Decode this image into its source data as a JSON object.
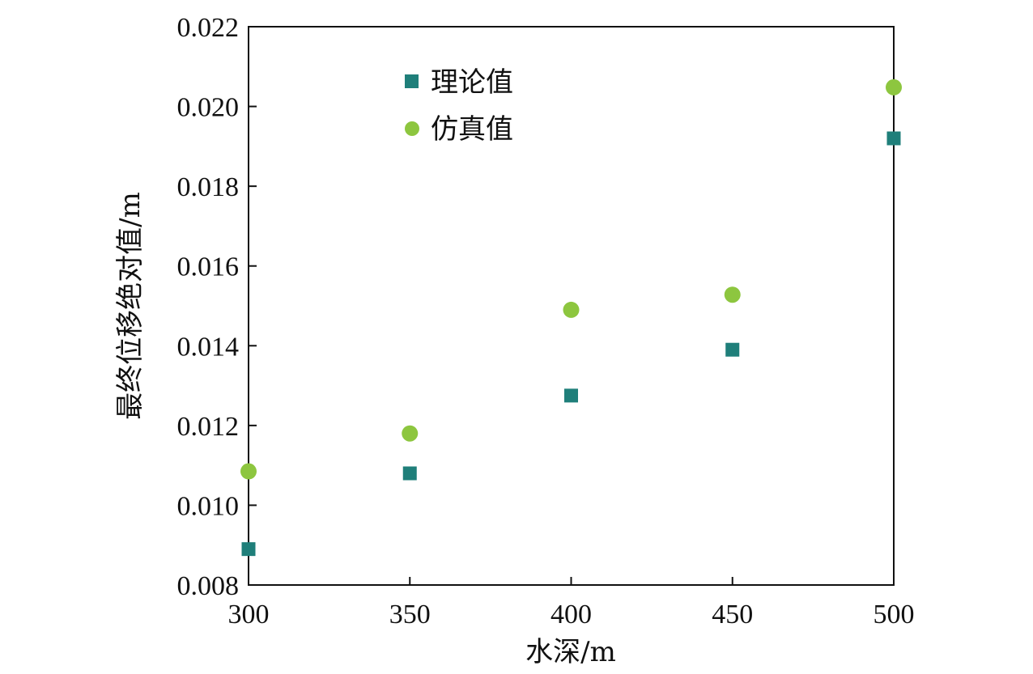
{
  "chart_data": {
    "type": "scatter",
    "xlabel": "水深/m",
    "ylabel": "最终位移绝对值/m",
    "xlim": [
      300,
      500
    ],
    "ylim": [
      0.008,
      0.022
    ],
    "xticks": [
      "300",
      "350",
      "400",
      "450",
      "500"
    ],
    "yticks": [
      "0.008",
      "0.010",
      "0.012",
      "0.014",
      "0.016",
      "0.018",
      "0.020",
      "0.022"
    ],
    "grid": false,
    "legend_position": "top-left",
    "x": [
      300,
      350,
      400,
      450,
      500
    ],
    "series": [
      {
        "name": "理论值",
        "marker": "square",
        "color": "#1f7f7a",
        "values": [
          0.0089,
          0.0108,
          0.01275,
          0.0139,
          0.0192
        ]
      },
      {
        "name": "仿真值",
        "marker": "circle",
        "color": "#8dc63f",
        "values": [
          0.01085,
          0.0118,
          0.0149,
          0.01528,
          0.02048
        ]
      }
    ]
  }
}
